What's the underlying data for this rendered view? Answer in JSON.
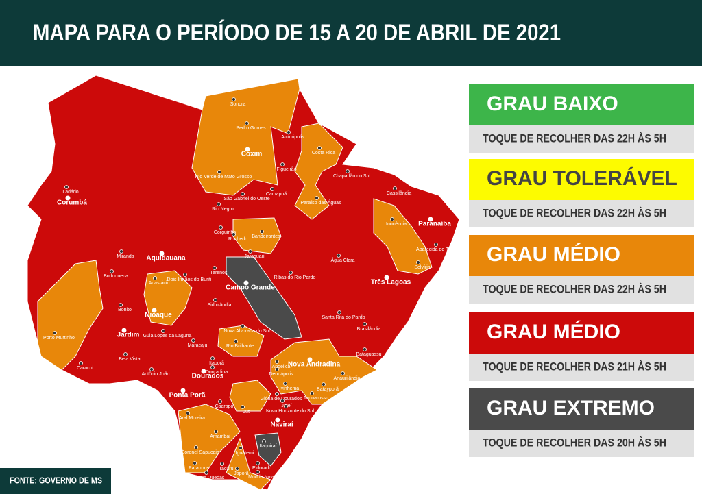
{
  "header": {
    "title": "MAPA PARA O PERÍODO DE 15 A 20 DE ABRIL DE 2021"
  },
  "legend": {
    "items": [
      {
        "label": "GRAU BAIXO",
        "note": "TOQUE DE RECOLHER DAS 22H ÀS 5H"
      },
      {
        "label": "GRAU TOLERÁVEL",
        "note": "TOQUE DE RECOLHER DAS 22H ÀS 5H"
      },
      {
        "label": "GRAU MÉDIO",
        "note": "TOQUE DE RECOLHER DAS 22H ÀS 5H"
      },
      {
        "label": "GRAU MÉDIO",
        "note": "TOQUE DE RECOLHER DAS 21H ÀS 5H"
      },
      {
        "label": "GRAU EXTREMO",
        "note": "TOQUE DE RECOLHER DAS 20H ÀS 5H"
      }
    ]
  },
  "map": {
    "cities": [
      "Sonora",
      "Pedro Gomes",
      "Alcinópolis",
      "Coxim",
      "Costa Rica",
      "Figueirão",
      "Rio Verde de Mato Grosso",
      "Chapadão do Sul",
      "São Gabriel do Oeste",
      "Camapuã",
      "Paraíso das Águas",
      "Cassilândia",
      "Ladário",
      "Corumbá",
      "Rio Negro",
      "Inocência",
      "Paranaíba",
      "Corguinho",
      "Bandeirantes",
      "Rochedo",
      "Aparecida do Taboado",
      "Jaraguari",
      "Miranda",
      "Aquidauana",
      "Água Clara",
      "Selvíria",
      "Bodoquena",
      "Dois Irmãos do Buriti",
      "Terenos",
      "Ribas do Rio Pardo",
      "Três Lagoas",
      "Anastácio",
      "Campo Grande",
      "Sidrolândia",
      "Bonito",
      "Nioaque",
      "Santa Rita do Pardo",
      "Brasilândia",
      "Nova Alvorada do Sul",
      "Jardim",
      "Guia Lopes da Laguna",
      "Porto Murtinho",
      "Maracaju",
      "Rio Brilhante",
      "Bataguassu",
      "Nova Andradina",
      "Bela Vista",
      "Caracol",
      "Itaporã",
      "Douradina",
      "Angélica",
      "Anaurilândia",
      "Antônio João",
      "Dourados",
      "Deodápolis",
      "Ivinhema",
      "Glória de Dourados",
      "Batayporã",
      "Ponta Porã",
      "Jateí",
      "Novo Horizonte do Sul",
      "Taquarussu",
      "Caarapó",
      "Juti",
      "Aral Moreira",
      "Naviraí",
      "Amambai",
      "Itaquiraí",
      "Coronel Sapucaia",
      "Iguatemi",
      "Paranhos",
      "Tacuru",
      "Eldorado",
      "Sete Quedas",
      "Japorã",
      "Mundo Novo"
    ]
  },
  "source": "FONTE: GOVERNO DE MS"
}
